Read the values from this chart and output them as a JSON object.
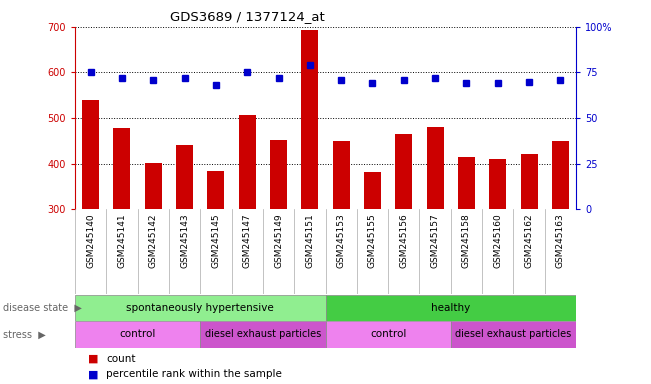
{
  "title": "GDS3689 / 1377124_at",
  "samples": [
    "GSM245140",
    "GSM245141",
    "GSM245142",
    "GSM245143",
    "GSM245145",
    "GSM245147",
    "GSM245149",
    "GSM245151",
    "GSM245153",
    "GSM245155",
    "GSM245156",
    "GSM245157",
    "GSM245158",
    "GSM245160",
    "GSM245162",
    "GSM245163"
  ],
  "counts": [
    540,
    478,
    402,
    440,
    383,
    507,
    452,
    693,
    449,
    381,
    465,
    481,
    415,
    410,
    422,
    449
  ],
  "percentile": [
    75,
    72,
    71,
    72,
    68,
    75,
    72,
    79,
    71,
    69,
    71,
    72,
    69,
    69,
    70,
    71
  ],
  "ylim_left": [
    300,
    700
  ],
  "ylim_right": [
    0,
    100
  ],
  "yticks_left": [
    300,
    400,
    500,
    600,
    700
  ],
  "yticks_right": [
    0,
    25,
    50,
    75,
    100
  ],
  "bar_color": "#cc0000",
  "dot_color": "#0000cc",
  "disease_hyp_color": "#90ee90",
  "disease_healthy_color": "#44cc44",
  "stress_light_color": "#ee82ee",
  "stress_dark_color": "#cc55cc",
  "xtick_bg_color": "#d8d8d8",
  "background_color": "#ffffff"
}
